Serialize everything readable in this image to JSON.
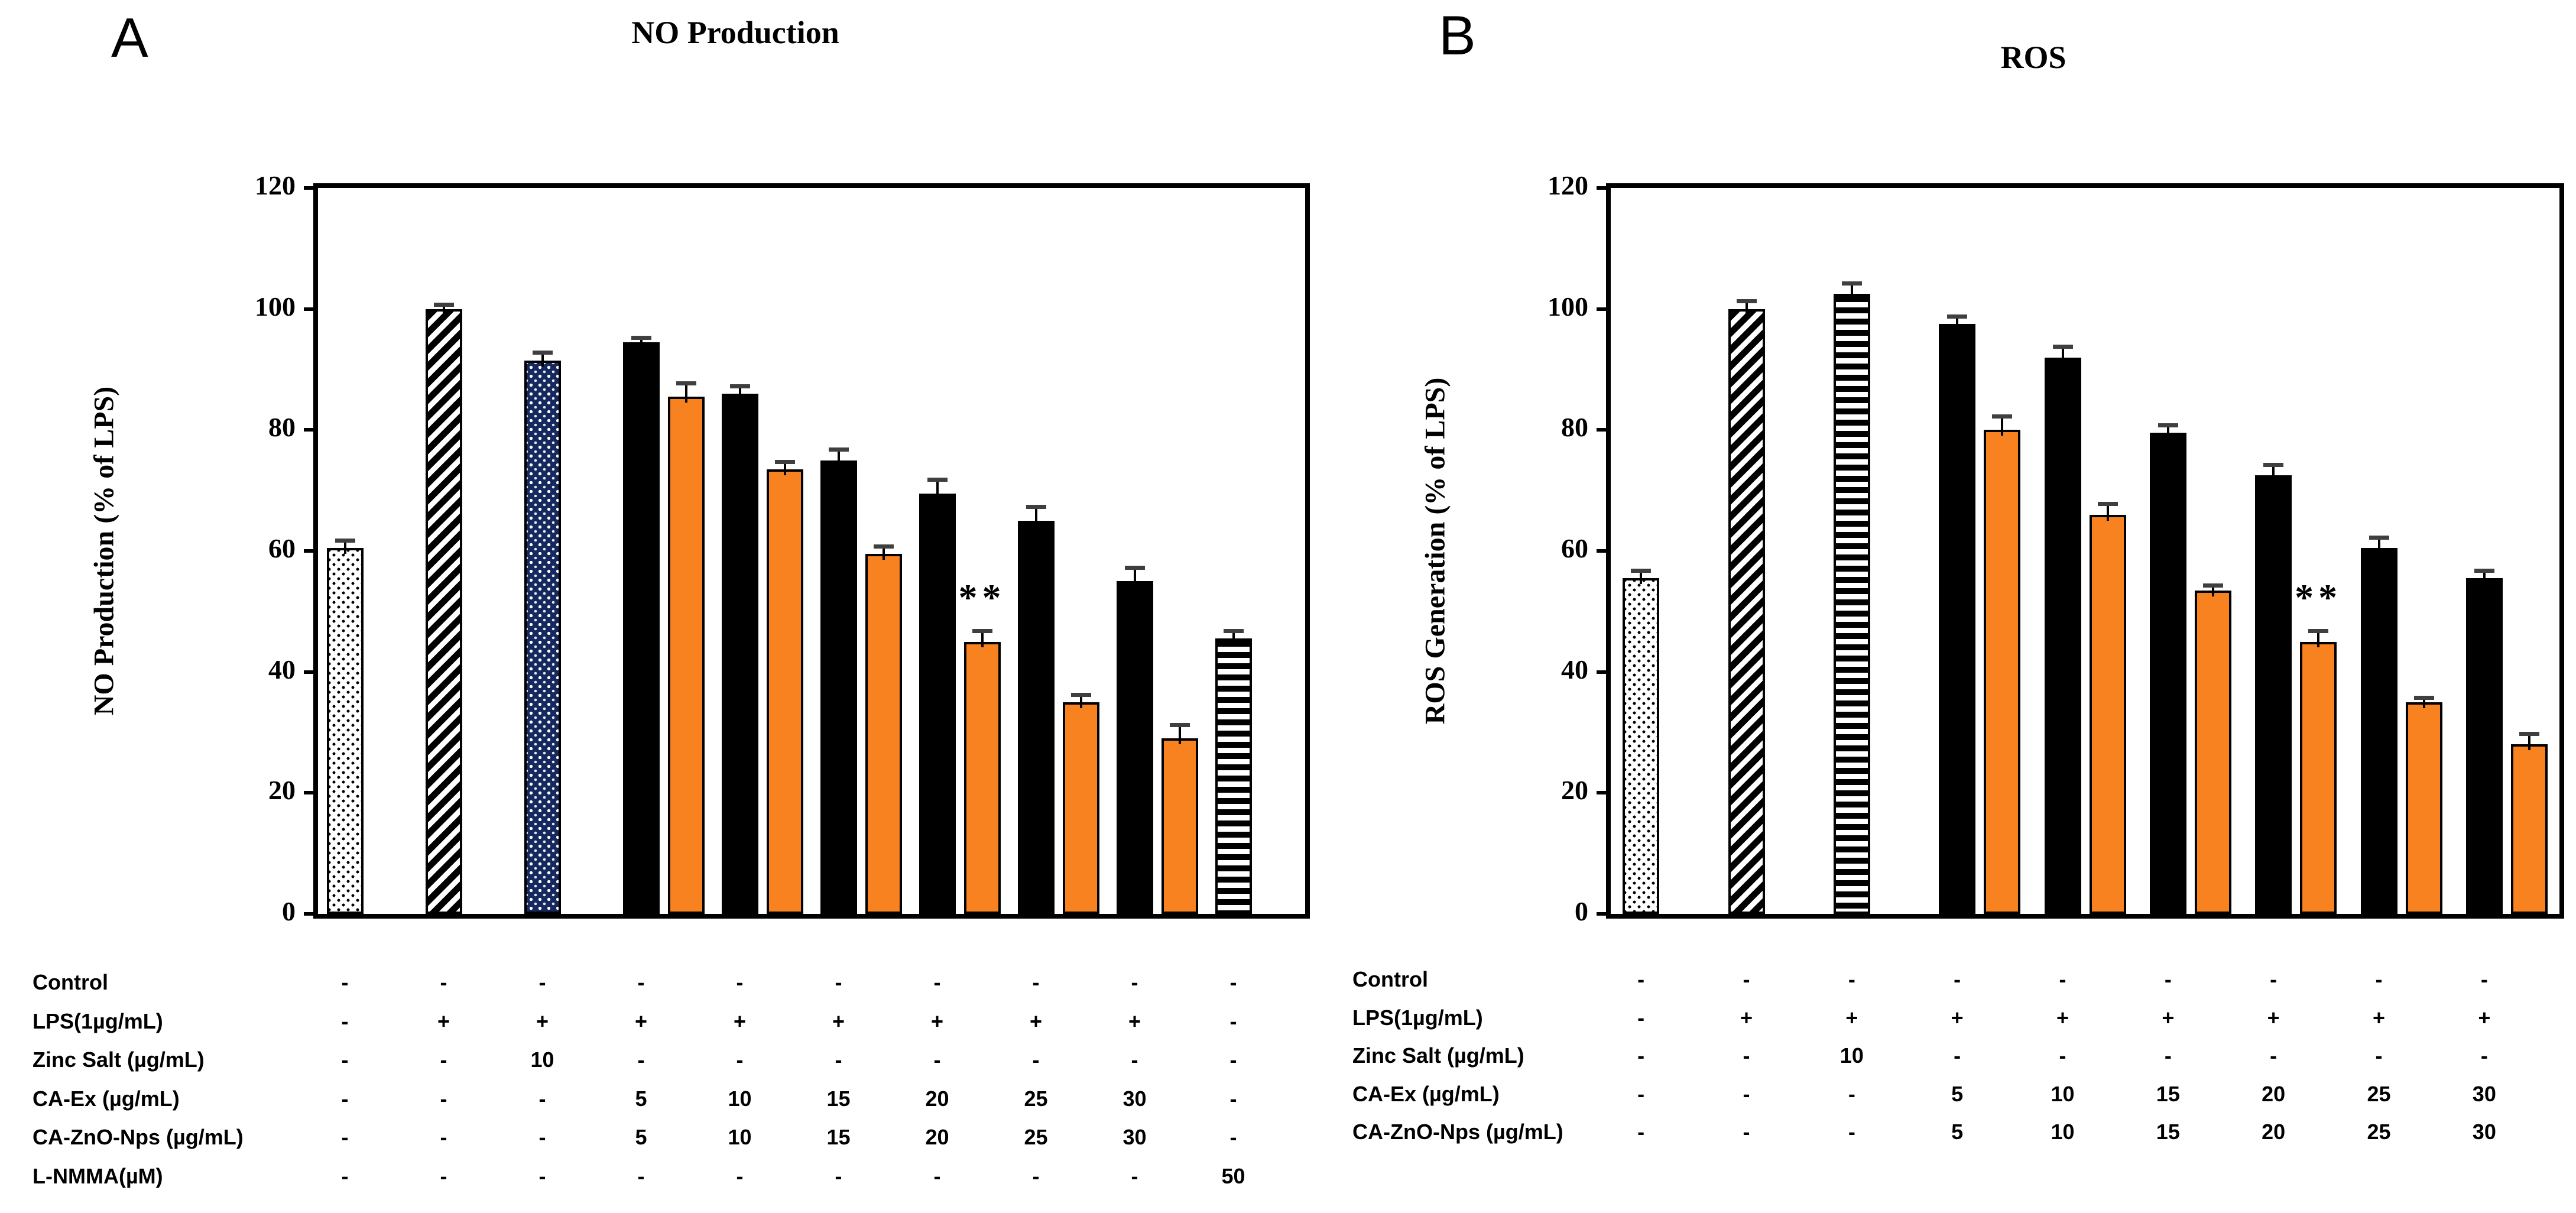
{
  "colors": {
    "bar_black": "#000000",
    "bar_orange": "#F8821F",
    "bar_navy_blue": "#16295E",
    "error_cap_gray": "#3F3F3F",
    "axis_black": "#000000"
  },
  "chart_data": [
    {
      "panel_label": "A",
      "type": "bar",
      "title": "NO Production",
      "ylabel": "NO Production (% of LPS)",
      "ylim": [
        0,
        120
      ],
      "yticks": [
        0,
        20,
        40,
        60,
        80,
        100,
        120
      ],
      "grid": "off",
      "legend": "none",
      "columns": [
        {
          "bars": [
            {
              "style": "dots-white",
              "value": 60.5,
              "err": 1
            }
          ]
        },
        {
          "bars": [
            {
              "style": "hatch-diagonal",
              "value": 100,
              "err": 0.5
            }
          ]
        },
        {
          "bars": [
            {
              "style": "dots-blue",
              "value": 91.5,
              "err": 1
            }
          ]
        },
        {
          "bars": [
            {
              "style": "black",
              "value": 94.5,
              "err": 0.5
            },
            {
              "style": "orange",
              "value": 85.5,
              "err": 2
            }
          ]
        },
        {
          "bars": [
            {
              "style": "black",
              "value": 86,
              "err": 1
            },
            {
              "style": "orange",
              "value": 73.5,
              "err": 1
            }
          ]
        },
        {
          "bars": [
            {
              "style": "black",
              "value": 75,
              "err": 1.5
            },
            {
              "style": "orange",
              "value": 59.5,
              "err": 1
            }
          ]
        },
        {
          "bars": [
            {
              "style": "black",
              "value": 69.5,
              "err": 2
            },
            {
              "style": "orange",
              "value": 45,
              "err": 1.5,
              "sig": "**"
            }
          ]
        },
        {
          "bars": [
            {
              "style": "black",
              "value": 65,
              "err": 2
            },
            {
              "style": "orange",
              "value": 35,
              "err": 1
            }
          ]
        },
        {
          "bars": [
            {
              "style": "black",
              "value": 55,
              "err": 2
            },
            {
              "style": "orange",
              "value": 29,
              "err": 2
            }
          ]
        },
        {
          "bars": [
            {
              "style": "hatch-horizontal",
              "value": 45.5,
              "err": 1
            }
          ]
        }
      ],
      "table": {
        "rows": [
          {
            "label": "Control",
            "values": [
              "-",
              "-",
              "-",
              "-",
              "-",
              "-",
              "-",
              "-",
              "-",
              "-"
            ]
          },
          {
            "label": "LPS(1µg/mL)",
            "values": [
              "-",
              "+",
              "+",
              "+",
              "+",
              "+",
              "+",
              "+",
              "+",
              "-"
            ]
          },
          {
            "label": "Zinc Salt (µg/mL)",
            "values": [
              "-",
              "-",
              "10",
              "-",
              "-",
              "-",
              "-",
              "-",
              "-",
              "-"
            ]
          },
          {
            "label": "CA-Ex (µg/mL)",
            "values": [
              "-",
              "-",
              "-",
              "5",
              "10",
              "15",
              "20",
              "25",
              "30",
              "-"
            ]
          },
          {
            "label": "CA-ZnO-Nps (µg/mL)",
            "values": [
              "-",
              "-",
              "-",
              "5",
              "10",
              "15",
              "20",
              "25",
              "30",
              "-"
            ]
          },
          {
            "label": "L-NMMA(µM)",
            "values": [
              "-",
              "-",
              "-",
              "-",
              "-",
              "-",
              "-",
              "-",
              "-",
              "50"
            ]
          }
        ]
      }
    },
    {
      "panel_label": "B",
      "type": "bar",
      "title": "ROS",
      "ylabel": "ROS Generation (% of LPS)",
      "ylim": [
        0,
        120
      ],
      "yticks": [
        0,
        20,
        40,
        60,
        80,
        100,
        120
      ],
      "grid": "off",
      "legend": "none",
      "columns": [
        {
          "bars": [
            {
              "style": "dots-white",
              "value": 55.5,
              "err": 1
            }
          ]
        },
        {
          "bars": [
            {
              "style": "hatch-diagonal",
              "value": 100,
              "err": 1
            }
          ]
        },
        {
          "bars": [
            {
              "style": "hatch-horizontal",
              "value": 102.5,
              "err": 1.5
            }
          ]
        },
        {
          "bars": [
            {
              "style": "black",
              "value": 97.5,
              "err": 1
            },
            {
              "style": "orange",
              "value": 80,
              "err": 2
            }
          ]
        },
        {
          "bars": [
            {
              "style": "black",
              "value": 92,
              "err": 1.5
            },
            {
              "style": "orange",
              "value": 66,
              "err": 1.5
            }
          ]
        },
        {
          "bars": [
            {
              "style": "black",
              "value": 79.5,
              "err": 1
            },
            {
              "style": "orange",
              "value": 53.5,
              "err": 0.5
            }
          ]
        },
        {
          "bars": [
            {
              "style": "black",
              "value": 72.5,
              "err": 1.5
            },
            {
              "style": "orange",
              "value": 45,
              "err": 1.5,
              "sig": "**"
            }
          ]
        },
        {
          "bars": [
            {
              "style": "black",
              "value": 60.5,
              "err": 1.5
            },
            {
              "style": "orange",
              "value": 35,
              "err": 0.5
            }
          ]
        },
        {
          "bars": [
            {
              "style": "black",
              "value": 55.5,
              "err": 1
            },
            {
              "style": "orange",
              "value": 28,
              "err": 1.5
            }
          ]
        }
      ],
      "table": {
        "rows": [
          {
            "label": "Control",
            "values": [
              "-",
              "-",
              "-",
              "-",
              "-",
              "-",
              "-",
              "-",
              "-"
            ]
          },
          {
            "label": "LPS(1µg/mL)",
            "values": [
              "-",
              "+",
              "+",
              "+",
              "+",
              "+",
              "+",
              "+",
              "+"
            ]
          },
          {
            "label": "Zinc Salt (µg/mL)",
            "values": [
              "-",
              "-",
              "10",
              "-",
              "-",
              "-",
              "-",
              "-",
              "-"
            ]
          },
          {
            "label": "CA-Ex (µg/mL)",
            "values": [
              "-",
              "-",
              "-",
              "5",
              "10",
              "15",
              "20",
              "25",
              "30"
            ]
          },
          {
            "label": "CA-ZnO-Nps (µg/mL)",
            "values": [
              "-",
              "-",
              "-",
              "5",
              "10",
              "15",
              "20",
              "25",
              "30"
            ]
          }
        ]
      }
    }
  ]
}
